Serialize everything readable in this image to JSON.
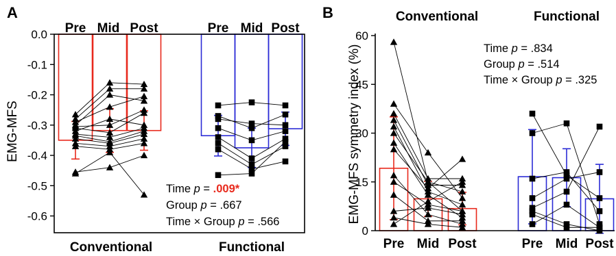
{
  "chart_data": [
    {
      "panel_label": "A",
      "type": "bar",
      "subtype": "paired bar with individual trajectories",
      "ylabel": "EMG-MFS",
      "ylim": [
        -0.65,
        0
      ],
      "yticks": [
        "0.0",
        "-0.1",
        "-0.2",
        "-0.3",
        "-0.4",
        "-0.5",
        "-0.6"
      ],
      "ytick_values": [
        0,
        -0.1,
        -0.2,
        -0.3,
        -0.4,
        -0.5,
        -0.6
      ],
      "categories": [
        "Pre",
        "Mid",
        "Post"
      ],
      "groups": [
        {
          "name": "Conventional",
          "color": "#e8291c",
          "marker": "triangle",
          "means": [
            -0.35,
            -0.318,
            -0.318
          ],
          "sd": [
            0.062,
            0.072,
            0.065
          ],
          "subjects": [
            [
              -0.265,
              -0.16,
              -0.165
            ],
            [
              -0.28,
              -0.18,
              -0.18
            ],
            [
              -0.29,
              -0.24,
              -0.205
            ],
            [
              -0.3,
              -0.2,
              -0.22
            ],
            [
              -0.305,
              -0.3,
              -0.25
            ],
            [
              -0.31,
              -0.325,
              -0.26
            ],
            [
              -0.32,
              -0.28,
              -0.3
            ],
            [
              -0.33,
              -0.34,
              -0.31
            ],
            [
              -0.335,
              -0.355,
              -0.32
            ],
            [
              -0.345,
              -0.36,
              -0.33
            ],
            [
              -0.36,
              -0.37,
              -0.345
            ],
            [
              -0.37,
              -0.38,
              -0.36
            ],
            [
              -0.455,
              -0.44,
              -0.4
            ],
            [
              -0.46,
              -0.39,
              -0.53
            ]
          ]
        },
        {
          "name": "Functional",
          "color": "#2b2bd6",
          "marker": "square",
          "means": [
            -0.335,
            -0.375,
            -0.312
          ],
          "sd": [
            0.067,
            0.065,
            0.055
          ],
          "subjects": [
            [
              -0.235,
              -0.225,
              -0.235
            ],
            [
              -0.27,
              -0.31,
              -0.265
            ],
            [
              -0.28,
              -0.295,
              -0.3
            ],
            [
              -0.31,
              -0.35,
              -0.32
            ],
            [
              -0.34,
              -0.41,
              -0.345
            ],
            [
              -0.36,
              -0.43,
              -0.37
            ],
            [
              -0.38,
              -0.445,
              -0.42
            ],
            [
              -0.465,
              -0.46,
              -0.355
            ]
          ]
        }
      ],
      "annotations": [
        {
          "prefix": "Time ",
          "p_label": "p",
          "p_value": " = ",
          "value": ".009*",
          "highlight_color": "#e8291c"
        },
        {
          "prefix": "Group ",
          "p_label": "p",
          "p_value": " = ",
          "value": ".667"
        },
        {
          "prefix": "Time × Group ",
          "p_label": "p",
          "p_value": " = ",
          "value": ".566"
        }
      ]
    },
    {
      "panel_label": "B",
      "type": "bar",
      "subtype": "paired bar with individual trajectories",
      "ylabel": "EMG-MFS symmetry index (%)",
      "ylim": [
        0,
        60
      ],
      "yticks": [
        "0",
        "15",
        "30",
        "45",
        "60"
      ],
      "ytick_values": [
        0,
        15,
        30,
        45,
        60
      ],
      "categories": [
        "Pre",
        "Mid",
        "Post"
      ],
      "groups": [
        {
          "name": "Conventional",
          "color": "#e8291c",
          "marker": "triangle",
          "means": [
            19.2,
            9.8,
            6.8
          ],
          "sd": [
            15.8,
            5.4,
            5.0
          ],
          "subjects": [
            [
              58,
              15,
              12
            ],
            [
              39,
              24,
              10
            ],
            [
              36,
              16,
              16
            ],
            [
              34,
              14,
              14
            ],
            [
              32,
              12,
              8
            ],
            [
              30,
              15,
              6
            ],
            [
              27,
              11,
              4
            ],
            [
              25,
              13,
              22
            ],
            [
              17,
              5,
              2
            ],
            [
              15,
              8,
              6
            ],
            [
              11,
              3,
              3
            ],
            [
              6,
              7,
              5
            ],
            [
              4,
              2,
              1
            ],
            [
              2,
              9,
              15
            ]
          ]
        },
        {
          "name": "Functional",
          "color": "#2b2bd6",
          "marker": "square",
          "means": [
            16.6,
            16.3,
            9.8
          ],
          "sd": [
            14.5,
            8.9,
            10.6
          ],
          "subjects": [
            [
              36,
              17,
              10
            ],
            [
              30,
              33,
              2
            ],
            [
              16,
              18,
              6
            ],
            [
              10,
              16,
              18
            ],
            [
              7,
              12,
              32
            ],
            [
              6,
              2,
              0
            ],
            [
              5,
              1,
              1
            ],
            [
              2,
              8,
              1
            ]
          ]
        }
      ],
      "annotations": [
        {
          "prefix": "Time ",
          "p_label": "p",
          "p_value": " = ",
          "value": ".834"
        },
        {
          "prefix": "Group ",
          "p_label": "p",
          "p_value": " = ",
          "value": ".514"
        },
        {
          "prefix": "Time × Group ",
          "p_label": "p",
          "p_value": " = ",
          "value": ".325"
        }
      ]
    }
  ]
}
